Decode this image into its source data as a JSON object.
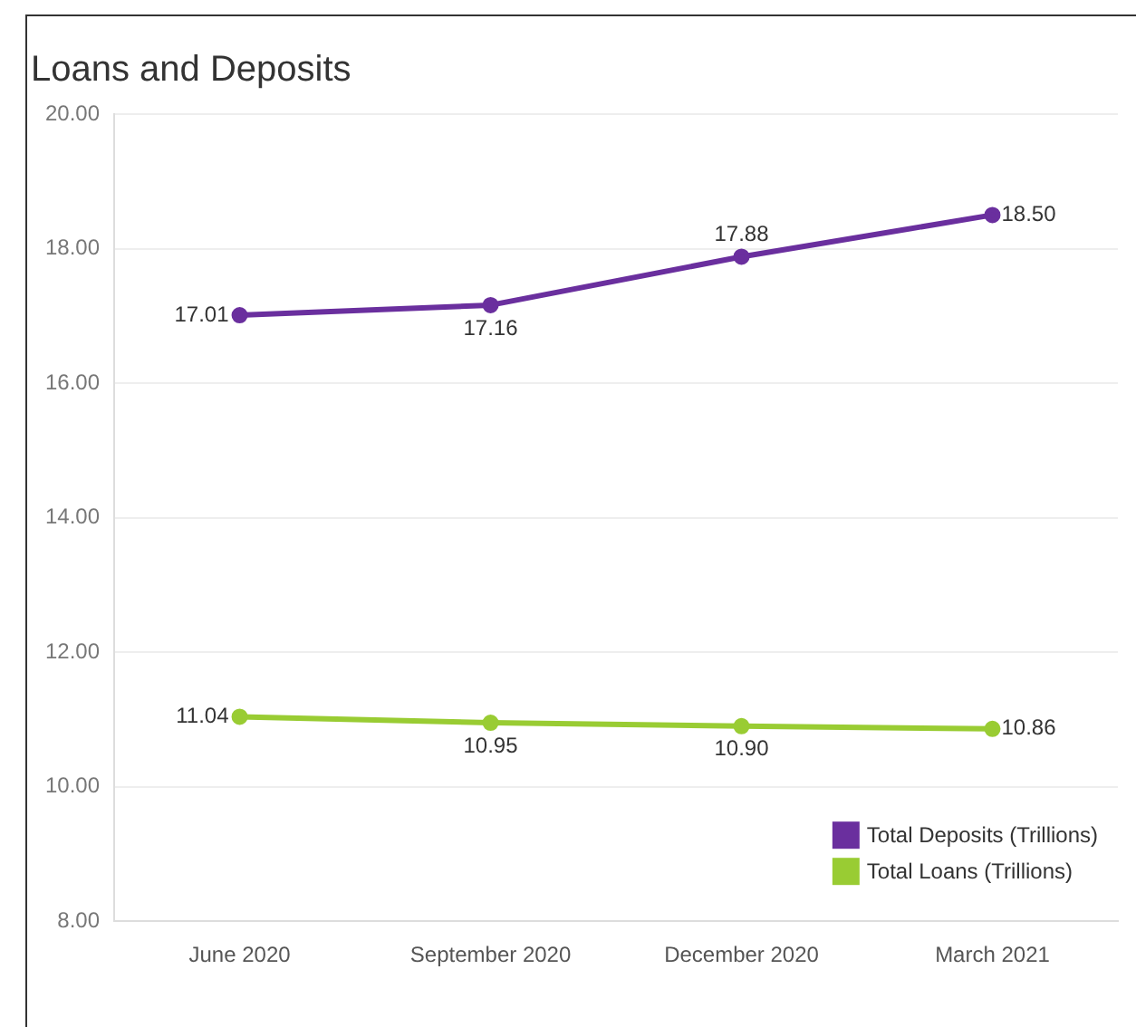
{
  "chart_data": {
    "type": "line",
    "title": "Loans and Deposits",
    "categories": [
      "June 2020",
      "September 2020",
      "December 2020",
      "March 2021"
    ],
    "series": [
      {
        "name": "Total Deposits (Trillions)",
        "color": "#6a2f9e",
        "values": [
          17.01,
          17.16,
          17.88,
          18.5
        ],
        "value_labels": [
          "17.01",
          "17.16",
          "17.88",
          "18.50"
        ]
      },
      {
        "name": "Total Loans (Trillions)",
        "color": "#99cc33",
        "values": [
          11.04,
          10.95,
          10.9,
          10.86
        ],
        "value_labels": [
          "11.04",
          "10.95",
          "10.90",
          "10.86"
        ]
      }
    ],
    "ylim": [
      8,
      20
    ],
    "yticks": [
      {
        "value": 8,
        "label": "8.00"
      },
      {
        "value": 10,
        "label": "10.00"
      },
      {
        "value": 12,
        "label": "12.00"
      },
      {
        "value": 14,
        "label": "14.00"
      },
      {
        "value": 16,
        "label": "16.00"
      },
      {
        "value": 18,
        "label": "18.00"
      },
      {
        "value": 20,
        "label": "20.00"
      }
    ],
    "grid": "y",
    "legend": "bottom right",
    "marker": "circle",
    "line_style": "solid"
  }
}
